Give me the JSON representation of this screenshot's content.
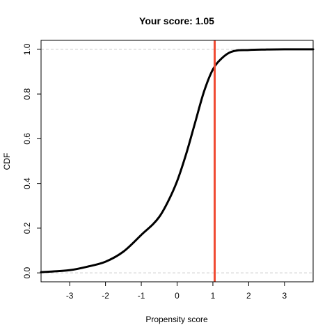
{
  "chart_data": {
    "type": "line",
    "title": "Your score: 1.05",
    "xlabel": "Propensity score",
    "ylabel": "CDF",
    "xlim": [
      -3.8,
      3.8
    ],
    "ylim": [
      -0.04,
      1.04
    ],
    "x_ticks": [
      -3,
      -2,
      -1,
      0,
      1,
      2,
      3
    ],
    "x_tick_labels": [
      "-3",
      "-2",
      "-1",
      "0",
      "1",
      "2",
      "3"
    ],
    "y_ticks": [
      0.0,
      0.2,
      0.4,
      0.6,
      0.8,
      1.0
    ],
    "y_tick_labels": [
      "0.0",
      "0.2",
      "0.4",
      "0.6",
      "0.8",
      "1.0"
    ],
    "grid": false,
    "reference_lines": [
      {
        "axis": "y",
        "value": 0.0,
        "style": "dashed",
        "color": "#cccccc"
      },
      {
        "axis": "y",
        "value": 1.0,
        "style": "dashed",
        "color": "#cccccc"
      }
    ],
    "marker_line": {
      "axis": "x",
      "value": 1.05,
      "color": "#f04a32"
    },
    "series": [
      {
        "color": "#000000",
        "x": [
          -3.8,
          -3.5,
          -3.0,
          -2.5,
          -2.0,
          -1.5,
          -1.0,
          -0.5,
          -0.25,
          0.0,
          0.25,
          0.5,
          0.75,
          1.0,
          1.25,
          1.5,
          2.0,
          2.5,
          3.0,
          3.8
        ],
        "y": [
          0.003,
          0.006,
          0.012,
          0.028,
          0.05,
          0.095,
          0.17,
          0.25,
          0.32,
          0.41,
          0.53,
          0.67,
          0.81,
          0.91,
          0.96,
          0.988,
          0.997,
          0.999,
          1.0,
          1.0
        ]
      }
    ]
  }
}
